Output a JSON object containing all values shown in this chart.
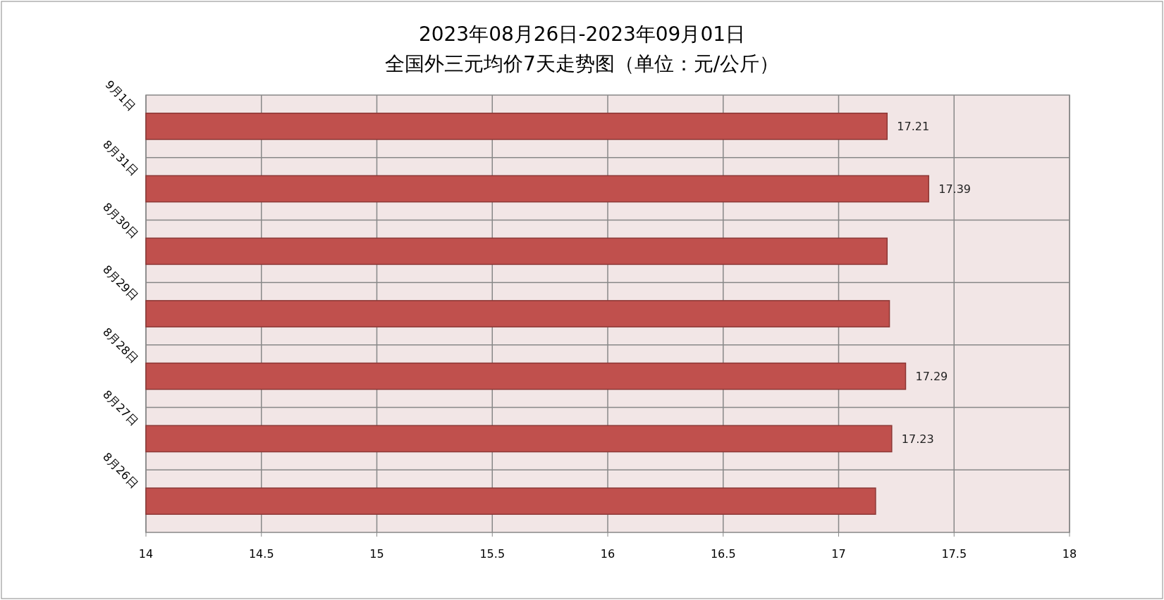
{
  "chart_data": {
    "type": "bar",
    "orientation": "horizontal",
    "title": "2023年08月26日-2023年09月01日",
    "subtitle": "全国外三元均价7天走势图（单位：元/公斤）",
    "categories": [
      "9月1日",
      "8月31日",
      "8月30日",
      "8月29日",
      "8月28日",
      "8月27日",
      "8月26日"
    ],
    "values": [
      17.21,
      17.39,
      17.21,
      17.22,
      17.29,
      17.23,
      17.16
    ],
    "value_labels": [
      "17.21",
      "17.39",
      null,
      null,
      "17.29",
      "17.23",
      null
    ],
    "color": "#c0504d",
    "xlim": [
      14,
      18
    ],
    "xticks": [
      14,
      14.5,
      15,
      15.5,
      16,
      16.5,
      17,
      17.5,
      18
    ],
    "grid": true
  }
}
